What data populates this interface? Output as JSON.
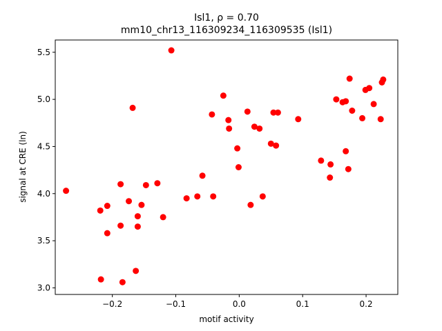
{
  "chart_data": {
    "type": "scatter",
    "title_line1": "Isl1, ρ = 0.70",
    "title_line2": "mm10_chr13_116309234_116309535 (Isl1)",
    "xlabel": "motif activity",
    "ylabel": "signal at CRE (ln)",
    "xlim": [
      -0.29,
      0.25
    ],
    "ylim": [
      2.93,
      5.63
    ],
    "xticks": [
      -0.2,
      -0.1,
      0.0,
      0.1,
      0.2
    ],
    "xtick_labels": [
      "−0.2",
      "−0.1",
      "0.0",
      "0.1",
      "0.2"
    ],
    "yticks": [
      3.0,
      3.5,
      4.0,
      4.5,
      5.0,
      5.5
    ],
    "ytick_labels": [
      "3.0",
      "3.5",
      "4.0",
      "4.5",
      "5.0",
      "5.5"
    ],
    "point_color": "#ff0000",
    "grid": false,
    "points": [
      {
        "x": -0.273,
        "y": 4.03
      },
      {
        "x": -0.219,
        "y": 3.82
      },
      {
        "x": -0.208,
        "y": 3.87
      },
      {
        "x": -0.208,
        "y": 3.58
      },
      {
        "x": -0.218,
        "y": 3.09
      },
      {
        "x": -0.187,
        "y": 4.1
      },
      {
        "x": -0.187,
        "y": 3.66
      },
      {
        "x": -0.184,
        "y": 3.06
      },
      {
        "x": -0.174,
        "y": 3.92
      },
      {
        "x": -0.168,
        "y": 4.91
      },
      {
        "x": -0.163,
        "y": 3.18
      },
      {
        "x": -0.16,
        "y": 3.76
      },
      {
        "x": -0.16,
        "y": 3.65
      },
      {
        "x": -0.154,
        "y": 3.88
      },
      {
        "x": -0.147,
        "y": 4.09
      },
      {
        "x": -0.129,
        "y": 4.11
      },
      {
        "x": -0.12,
        "y": 3.75
      },
      {
        "x": -0.107,
        "y": 5.52
      },
      {
        "x": -0.083,
        "y": 3.95
      },
      {
        "x": -0.066,
        "y": 3.97
      },
      {
        "x": -0.058,
        "y": 4.19
      },
      {
        "x": -0.043,
        "y": 4.84
      },
      {
        "x": -0.041,
        "y": 3.97
      },
      {
        "x": -0.025,
        "y": 5.04
      },
      {
        "x": -0.017,
        "y": 4.78
      },
      {
        "x": -0.016,
        "y": 4.69
      },
      {
        "x": -0.003,
        "y": 4.48
      },
      {
        "x": -0.001,
        "y": 4.28
      },
      {
        "x": 0.013,
        "y": 4.87
      },
      {
        "x": 0.018,
        "y": 3.88
      },
      {
        "x": 0.024,
        "y": 4.71
      },
      {
        "x": 0.032,
        "y": 4.69
      },
      {
        "x": 0.037,
        "y": 3.97
      },
      {
        "x": 0.05,
        "y": 4.53
      },
      {
        "x": 0.054,
        "y": 4.86
      },
      {
        "x": 0.058,
        "y": 4.51
      },
      {
        "x": 0.061,
        "y": 4.86
      },
      {
        "x": 0.093,
        "y": 4.79
      },
      {
        "x": 0.129,
        "y": 4.35
      },
      {
        "x": 0.143,
        "y": 4.17
      },
      {
        "x": 0.144,
        "y": 4.31
      },
      {
        "x": 0.153,
        "y": 5.0
      },
      {
        "x": 0.163,
        "y": 4.97
      },
      {
        "x": 0.168,
        "y": 4.98
      },
      {
        "x": 0.168,
        "y": 4.45
      },
      {
        "x": 0.172,
        "y": 4.26
      },
      {
        "x": 0.174,
        "y": 5.22
      },
      {
        "x": 0.178,
        "y": 4.88
      },
      {
        "x": 0.194,
        "y": 4.8
      },
      {
        "x": 0.199,
        "y": 5.1
      },
      {
        "x": 0.205,
        "y": 5.12
      },
      {
        "x": 0.212,
        "y": 4.95
      },
      {
        "x": 0.223,
        "y": 4.79
      },
      {
        "x": 0.225,
        "y": 5.18
      },
      {
        "x": 0.227,
        "y": 5.21
      }
    ]
  }
}
